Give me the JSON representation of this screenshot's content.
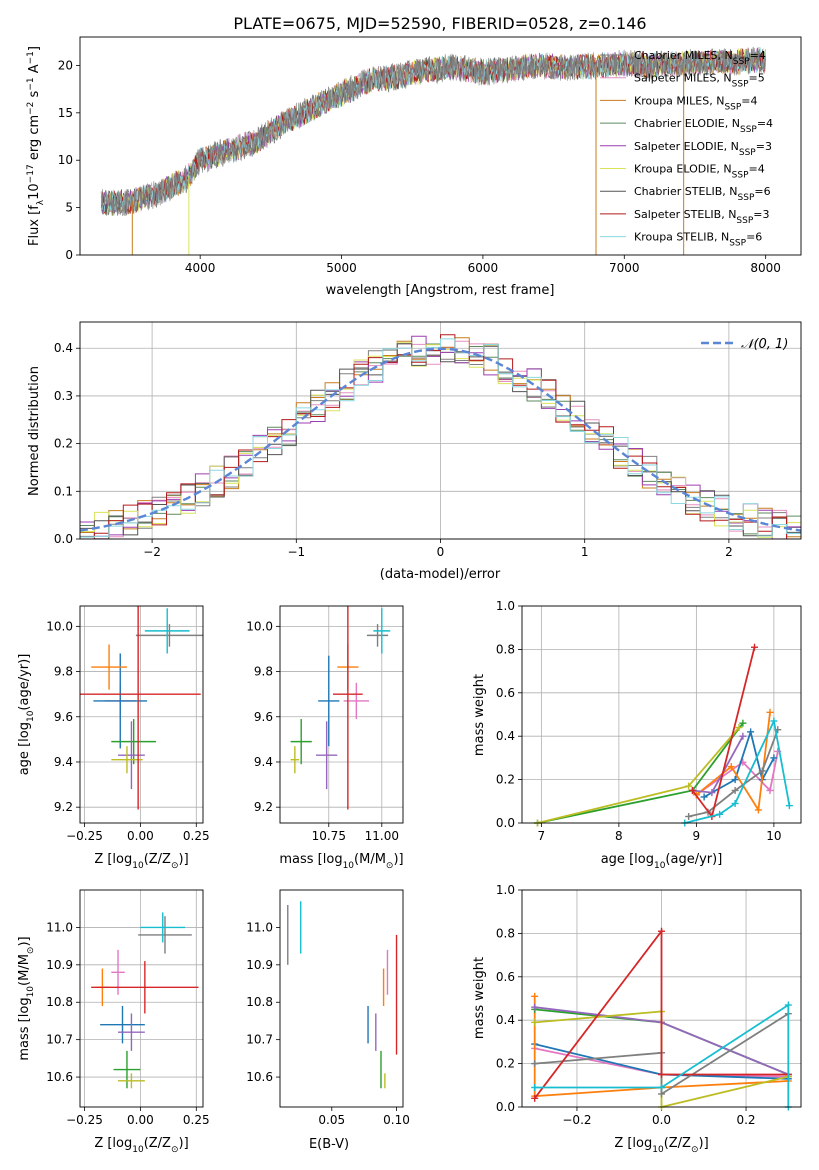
{
  "colors": [
    "#e377c2",
    "#1f77b4",
    "#ff7f0e",
    "#2ca02c",
    "#9467bd",
    "#bcbd22",
    "#7f7f7f",
    "#d62728",
    "#17becf"
  ],
  "model_colors": [
    "#808080",
    "#e68fc0",
    "#c87d1e",
    "#5f8a5f",
    "#9c3fb0",
    "#d9e35a",
    "#555555",
    "#b51a1a",
    "#8ad8e0"
  ],
  "chart_data": [
    {
      "id": "spectrum",
      "type": "line",
      "title": "PLATE=0675, MJD=52590, FIBERID=0528, z=0.146",
      "xlabel": "wavelength [Angstrom, rest frame]",
      "ylabel": "Flux [f",
      "ylabel_parts": [
        "Flux [f",
        "λ",
        "10",
        "−17",
        " erg cm",
        "−2",
        " s",
        "−1",
        " A",
        "−1",
        "]"
      ],
      "xlim": [
        3150,
        8250
      ],
      "ylim": [
        0,
        23
      ],
      "xticks": [
        4000,
        5000,
        6000,
        7000,
        8000
      ],
      "yticks": [
        0,
        5,
        10,
        15,
        20
      ],
      "grid": false,
      "legend_placement": "top-right",
      "legend": [
        {
          "base": "Chabrier MILES, N",
          "sub": "SSP",
          "value": "=4"
        },
        {
          "base": "Salpeter MILES, N",
          "sub": "SSP",
          "value": "=5"
        },
        {
          "base": "Kroupa MILES, N",
          "sub": "SSP",
          "value": "=4"
        },
        {
          "base": "Chabrier ELODIE, N",
          "sub": "SSP",
          "value": "=4"
        },
        {
          "base": "Salpeter ELODIE, N",
          "sub": "SSP",
          "value": "=3"
        },
        {
          "base": "Kroupa ELODIE, N",
          "sub": "SSP",
          "value": "=4"
        },
        {
          "base": "Chabrier STELIB, N",
          "sub": "SSP",
          "value": "=6"
        },
        {
          "base": "Salpeter STELIB, N",
          "sub": "SSP",
          "value": "=3"
        },
        {
          "base": "Kroupa STELIB, N",
          "sub": "SSP",
          "value": "=6"
        }
      ],
      "continuum": {
        "x": [
          3300,
          3500,
          3700,
          3900,
          4000,
          4200,
          4400,
          4600,
          4800,
          5000,
          5200,
          5400,
          5600,
          5800,
          6000,
          6200,
          6400,
          6600,
          6800,
          7000,
          7200,
          7400,
          7600,
          7800,
          8000
        ],
        "y": [
          5.5,
          5.6,
          6.5,
          8.0,
          10.0,
          11.0,
          12.0,
          14.0,
          15.5,
          17.0,
          18.5,
          18.8,
          19.5,
          19.8,
          19.3,
          19.6,
          20.0,
          19.8,
          19.9,
          20.2,
          20.0,
          20.2,
          20.3,
          20.4,
          20.6
        ]
      }
    },
    {
      "id": "residuals",
      "type": "step",
      "xlabel": "(data-model)/error",
      "ylabel": "Normed distribution",
      "xlim": [
        -2.5,
        2.5
      ],
      "ylim": [
        0,
        0.455
      ],
      "xticks": [
        -2,
        -1,
        0,
        1,
        2
      ],
      "xticklabels": [
        "−2",
        "−1",
        "0",
        "1",
        "2"
      ],
      "yticks": [
        0.0,
        0.1,
        0.2,
        0.3,
        0.4
      ],
      "yticklabels": [
        "0.0",
        "0.1",
        "0.2",
        "0.3",
        "0.4"
      ],
      "grid": true,
      "legend_placement": "top-right",
      "legend": [
        "𝒩(0, 1)"
      ],
      "gaussian": {
        "mu": 0,
        "sigma": 1
      }
    },
    {
      "id": "age-vs-z",
      "type": "errorbar",
      "xlabel_parts": [
        "Z [log",
        "10",
        "(Z/Z",
        "⊙",
        ")]"
      ],
      "ylabel_parts": [
        "age  [log",
        "10",
        "(age/yr)]"
      ],
      "xlim": [
        -0.27,
        0.28
      ],
      "ylim": [
        9.13,
        10.09
      ],
      "xticks": [
        -0.25,
        0.0,
        0.25
      ],
      "xticklabels": [
        "−0.25",
        "0.00",
        "0.25"
      ],
      "yticks": [
        9.2,
        9.4,
        9.6,
        9.8,
        10.0
      ],
      "yticklabels": [
        "9.2",
        "9.4",
        "9.6",
        "9.8",
        "10.0"
      ],
      "grid": true,
      "points": [
        {
          "c": 0,
          "x": -0.09,
          "y": 9.67,
          "xerr": 0.07,
          "yerr": 0.08
        },
        {
          "c": 1,
          "x": -0.09,
          "y": 9.67,
          "xerr": 0.12,
          "yerr": 0.21
        },
        {
          "c": 2,
          "x": -0.14,
          "y": 9.82,
          "xerr": 0.08,
          "yerr": 0.1
        },
        {
          "c": 3,
          "x": -0.03,
          "y": 9.49,
          "xerr": 0.1,
          "yerr": 0.1
        },
        {
          "c": 4,
          "x": -0.04,
          "y": 9.43,
          "xerr": 0.06,
          "yerr": 0.15
        },
        {
          "c": 5,
          "x": -0.06,
          "y": 9.41,
          "xerr": 0.07,
          "yerr": 0.06
        },
        {
          "c": 6,
          "x": 0.13,
          "y": 9.96,
          "xerr": 0.15,
          "yerr": 0.05
        },
        {
          "c": 7,
          "x": -0.01,
          "y": 9.7,
          "xerr": 0.28,
          "yerr": 0.51
        },
        {
          "c": 8,
          "x": 0.12,
          "y": 9.98,
          "xerr": 0.1,
          "yerr": 0.1
        }
      ]
    },
    {
      "id": "age-vs-mass",
      "type": "errorbar",
      "xlabel_parts": [
        "mass [log",
        "10",
        "(M/M",
        "⊙",
        ")]"
      ],
      "xlim": [
        10.52,
        11.1
      ],
      "ylim": [
        9.13,
        10.09
      ],
      "xticks": [
        10.75,
        11.0
      ],
      "xticklabels": [
        "10.75",
        "11.00"
      ],
      "yticks": [
        9.2,
        9.4,
        9.6,
        9.8,
        10.0
      ],
      "yticklabels": [
        "9.2",
        "9.4",
        "9.6",
        "9.8",
        "10.0"
      ],
      "grid": true,
      "points": [
        {
          "c": 0,
          "x": 10.88,
          "y": 9.67,
          "xerr": 0.06,
          "yerr": 0.08
        },
        {
          "c": 1,
          "x": 10.75,
          "y": 9.67,
          "xerr": 0.05,
          "yerr": 0.2
        },
        {
          "c": 2,
          "x": 10.84,
          "y": 9.82,
          "xerr": 0.05,
          "yerr": 0.1
        },
        {
          "c": 3,
          "x": 10.62,
          "y": 9.49,
          "xerr": 0.05,
          "yerr": 0.1
        },
        {
          "c": 4,
          "x": 10.74,
          "y": 9.43,
          "xerr": 0.05,
          "yerr": 0.15
        },
        {
          "c": 5,
          "x": 10.59,
          "y": 9.41,
          "xerr": 0.02,
          "yerr": 0.06
        },
        {
          "c": 6,
          "x": 10.98,
          "y": 9.96,
          "xerr": 0.05,
          "yerr": 0.05
        },
        {
          "c": 7,
          "x": 10.84,
          "y": 9.7,
          "xerr": 0.07,
          "yerr": 0.51
        },
        {
          "c": 8,
          "x": 11.0,
          "y": 9.98,
          "xerr": 0.04,
          "yerr": 0.1
        }
      ]
    },
    {
      "id": "weight-vs-age",
      "type": "line",
      "xlabel_parts": [
        "age  [log",
        "10",
        "(age/yr)]"
      ],
      "ylabel": "mass weight",
      "xlim": [
        6.75,
        10.35
      ],
      "ylim": [
        0,
        1.0
      ],
      "xticks": [
        7,
        8,
        9,
        10
      ],
      "xticklabels": [
        "7",
        "8",
        "9",
        "10"
      ],
      "yticks": [
        0.0,
        0.2,
        0.4,
        0.6,
        0.8,
        1.0
      ],
      "yticklabels": [
        "0.0",
        "0.2",
        "0.4",
        "0.6",
        "0.8",
        "1.0"
      ],
      "grid": true,
      "series": [
        {
          "c": 0,
          "x": [
            9.0,
            9.6,
            9.95,
            10.05
          ],
          "y": [
            0.13,
            0.28,
            0.15,
            0.33
          ]
        },
        {
          "c": 1,
          "x": [
            9.1,
            9.5,
            9.7,
            9.85,
            10.0
          ],
          "y": [
            0.12,
            0.2,
            0.42,
            0.2,
            0.3
          ]
        },
        {
          "c": 2,
          "x": [
            9.0,
            9.45,
            9.8,
            9.95
          ],
          "y": [
            0.13,
            0.26,
            0.06,
            0.51
          ]
        },
        {
          "c": 3,
          "x": [
            6.95,
            8.95,
            9.6
          ],
          "y": [
            0.0,
            0.15,
            0.46
          ]
        },
        {
          "c": 4,
          "x": [
            8.95,
            9.2,
            9.6
          ],
          "y": [
            0.15,
            0.14,
            0.4
          ]
        },
        {
          "c": 5,
          "x": [
            6.95,
            8.9,
            9.55
          ],
          "y": [
            0.0,
            0.17,
            0.44
          ]
        },
        {
          "c": 6,
          "x": [
            8.9,
            9.15,
            9.5,
            9.85,
            10.05
          ],
          "y": [
            0.03,
            0.05,
            0.15,
            0.24,
            0.43
          ]
        },
        {
          "c": 7,
          "x": [
            8.95,
            9.2,
            9.75
          ],
          "y": [
            0.15,
            0.03,
            0.81
          ]
        },
        {
          "c": 8,
          "x": [
            8.85,
            9.3,
            9.5,
            10.0,
            10.2
          ],
          "y": [
            0.0,
            0.04,
            0.09,
            0.47,
            0.08
          ]
        }
      ]
    },
    {
      "id": "mass-vs-z",
      "type": "errorbar",
      "xlabel_parts": [
        "Z [log",
        "10",
        "(Z/Z",
        "⊙",
        ")]"
      ],
      "ylabel_parts": [
        "mass [log",
        "10",
        "(M/M",
        "⊙",
        ")]"
      ],
      "xlim": [
        -0.27,
        0.28
      ],
      "ylim": [
        10.52,
        11.1
      ],
      "xticks": [
        -0.25,
        0.0,
        0.25
      ],
      "xticklabels": [
        "−0.25",
        "0.00",
        "0.25"
      ],
      "yticks": [
        10.6,
        10.7,
        10.8,
        10.9,
        11.0
      ],
      "yticklabels": [
        "10.6",
        "10.7",
        "10.8",
        "10.9",
        "11.0"
      ],
      "grid": true,
      "points": [
        {
          "c": 0,
          "x": -0.1,
          "y": 10.88,
          "xerr": 0.03,
          "yerr": 0.06
        },
        {
          "c": 1,
          "x": -0.08,
          "y": 10.74,
          "xerr": 0.1,
          "yerr": 0.05
        },
        {
          "c": 2,
          "x": -0.17,
          "y": 10.84,
          "xerr": 0.03,
          "yerr": 0.05
        },
        {
          "c": 3,
          "x": -0.06,
          "y": 10.62,
          "xerr": 0.06,
          "yerr": 0.05
        },
        {
          "c": 4,
          "x": -0.04,
          "y": 10.72,
          "xerr": 0.06,
          "yerr": 0.05
        },
        {
          "c": 5,
          "x": -0.04,
          "y": 10.59,
          "xerr": 0.06,
          "yerr": 0.02
        },
        {
          "c": 6,
          "x": 0.11,
          "y": 10.98,
          "xerr": 0.12,
          "yerr": 0.05
        },
        {
          "c": 7,
          "x": 0.02,
          "y": 10.84,
          "xerr": 0.24,
          "yerr": 0.07
        },
        {
          "c": 8,
          "x": 0.1,
          "y": 11.0,
          "xerr": 0.1,
          "yerr": 0.04
        }
      ]
    },
    {
      "id": "mass-vs-ebv",
      "type": "errorbar",
      "xlabel": "E(B-V)",
      "xlim": [
        0.01,
        0.105
      ],
      "ylim": [
        10.52,
        11.1
      ],
      "xticks": [
        0.05,
        0.1
      ],
      "xticklabels": [
        "0.05",
        "0.10"
      ],
      "yticks": [
        10.6,
        10.7,
        10.8,
        10.9,
        11.0
      ],
      "yticklabels": [
        "10.6",
        "10.7",
        "10.8",
        "10.9",
        "11.0"
      ],
      "grid": false,
      "points": [
        {
          "c": 0,
          "x": 0.093,
          "y": 10.88,
          "xerr": 0,
          "yerr": 0.06
        },
        {
          "c": 1,
          "x": 0.078,
          "y": 10.74,
          "xerr": 0,
          "yerr": 0.05
        },
        {
          "c": 2,
          "x": 0.09,
          "y": 10.84,
          "xerr": 0,
          "yerr": 0.05
        },
        {
          "c": 3,
          "x": 0.088,
          "y": 10.62,
          "xerr": 0,
          "yerr": 0.05
        },
        {
          "c": 4,
          "x": 0.084,
          "y": 10.72,
          "xerr": 0,
          "yerr": 0.05
        },
        {
          "c": 5,
          "x": 0.091,
          "y": 10.59,
          "xerr": 0,
          "yerr": 0.02
        },
        {
          "c": 6,
          "x": 0.016,
          "y": 10.98,
          "xerr": 0,
          "yerr": 0.08
        },
        {
          "c": 7,
          "x": 0.1,
          "y": 10.82,
          "xerr": 0,
          "yerr": 0.16
        },
        {
          "c": 8,
          "x": 0.026,
          "y": 11.0,
          "xerr": 0,
          "yerr": 0.07
        }
      ]
    },
    {
      "id": "weight-vs-z",
      "type": "line",
      "xlabel_parts": [
        "Z [log",
        "10",
        "(Z/Z",
        "⊙",
        ")]"
      ],
      "ylabel": "mass weight",
      "xlim": [
        -0.33,
        0.33
      ],
      "ylim": [
        0,
        1.0
      ],
      "xticks": [
        -0.2,
        0.0,
        0.2
      ],
      "xticklabels": [
        "−0.2",
        "0.0",
        "0.2"
      ],
      "yticks": [
        0.0,
        0.2,
        0.4,
        0.6,
        0.8,
        1.0
      ],
      "yticklabels": [
        "0.0",
        "0.2",
        "0.4",
        "0.6",
        "0.8",
        "1.0"
      ],
      "grid": true,
      "series": [
        {
          "c": 0,
          "x": [
            -0.3,
            0.0,
            0.3
          ],
          "y": [
            0.27,
            0.15,
            0.14
          ]
        },
        {
          "c": 1,
          "x": [
            -0.3,
            0.0,
            0.3
          ],
          "y": [
            0.29,
            0.15,
            0.13
          ]
        },
        {
          "c": 2,
          "x": [
            -0.3,
            -0.3,
            0.0,
            0.3
          ],
          "y": [
            0.51,
            0.05,
            0.09,
            0.12
          ]
        },
        {
          "c": 3,
          "x": [
            -0.3,
            0.0,
            0.3
          ],
          "y": [
            0.45,
            0.39,
            0.15
          ]
        },
        {
          "c": 4,
          "x": [
            -0.3,
            0.0,
            0.3
          ],
          "y": [
            0.46,
            0.39,
            0.15
          ]
        },
        {
          "c": 5,
          "x": [
            -0.3,
            0.0,
            0.0,
            0.3
          ],
          "y": [
            0.39,
            0.44,
            0.0,
            0.14
          ]
        },
        {
          "c": 6,
          "x": [
            -0.3,
            0.0,
            0.0,
            0.3
          ],
          "y": [
            0.2,
            0.25,
            0.06,
            0.43
          ]
        },
        {
          "c": 7,
          "x": [
            -0.3,
            0.0,
            0.0,
            0.3
          ],
          "y": [
            0.04,
            0.81,
            0.15,
            0.15
          ]
        },
        {
          "c": 8,
          "x": [
            -0.3,
            0.0,
            0.3,
            0.3
          ],
          "y": [
            0.09,
            0.09,
            0.47,
            0.0
          ]
        }
      ]
    }
  ]
}
